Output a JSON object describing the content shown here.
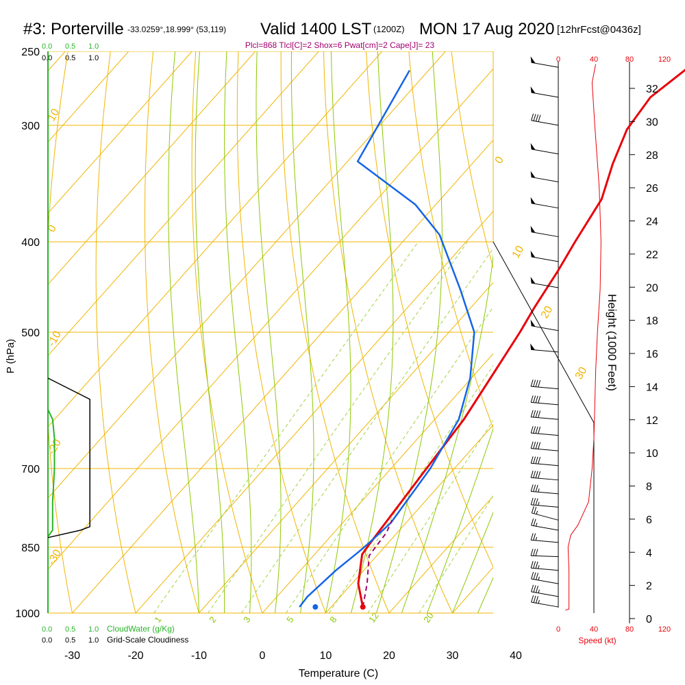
{
  "header": {
    "station": "#3: Porterville",
    "location": "-33.0259°,18.999° (53,119)",
    "valid": "Valid 1400 LST",
    "utc": "(1200Z)",
    "date": "MON 17 Aug 2020",
    "forecast": "[12hrFcst@0436z]",
    "indices": "Plcl=868 Tlcl[C]=2 Shox=6 Pwat[cm]=2 Cape[J]= 23"
  },
  "colors": {
    "temperature": "#e8000a",
    "dewpoint": "#1464e6",
    "parcel": "#a0006e",
    "isotherm": "#f0b400",
    "dry_adiabat": "#f0b400",
    "moist_adiabat": "#8cc800",
    "mixing_ratio": "#a0d040",
    "cloud_water": "#28b428",
    "cloudiness": "#000000",
    "wind_speed": "#e8000a"
  },
  "cloud_scale": {
    "top_green": [
      "0.0",
      "0.5",
      "1.0"
    ],
    "top_black": [
      "0.0",
      "0.5",
      "1.0"
    ],
    "bottom_green": [
      "0.0",
      "0.5",
      "1.0"
    ],
    "bottom_green_label": "CloudWater (g/Kg)",
    "bottom_black": [
      "0.0",
      "0.5",
      "1.0"
    ],
    "bottom_black_label": "Grid-Scale Cloudiness"
  },
  "speed_axis": {
    "ticks": [
      "0",
      "40",
      "80",
      "120"
    ],
    "label": "Speed (kt)"
  },
  "chart_data": {
    "type": "line",
    "title": "#3: Porterville  Valid 1400 LST (1200Z) MON 17 Aug 2020",
    "xlabel": "Temperature (C)",
    "ylabel": "P (hPa)",
    "y2label": "Height (1000 Feet)",
    "xlim": [
      -35,
      36
    ],
    "ylim": [
      1000,
      250
    ],
    "yscale": "log",
    "x_ticks": [
      -30,
      -20,
      -10,
      0,
      10,
      20,
      30,
      40
    ],
    "y_ticks": [
      250,
      300,
      400,
      500,
      700,
      850,
      1000
    ],
    "height_ticks": [
      0,
      2,
      4,
      6,
      8,
      10,
      12,
      14,
      16,
      18,
      20,
      22,
      24,
      26,
      28,
      30,
      32
    ],
    "dry_adiabat_labels": [
      "-10",
      "0",
      "10",
      "20",
      "30",
      "0",
      "10",
      "20",
      "30"
    ],
    "mixing_ratio_labels": [
      "1",
      "2",
      "3",
      "5",
      "8",
      "12",
      "20"
    ],
    "series": [
      {
        "name": "Temperature",
        "values": [
          [
            15.0,
            985
          ],
          [
            11.0,
            930
          ],
          [
            7.5,
            865
          ],
          [
            7.2,
            842
          ],
          [
            5.6,
            700
          ],
          [
            4.6,
            620
          ],
          [
            3.0,
            560
          ],
          [
            1.2,
            500
          ],
          [
            0.0,
            470
          ],
          [
            -1.4,
            430
          ],
          [
            -2.8,
            400
          ],
          [
            -4.6,
            360
          ],
          [
            -7.8,
            330
          ],
          [
            -10.4,
            303
          ],
          [
            -11.2,
            280
          ],
          [
            -9.4,
            260
          ]
        ]
      },
      {
        "name": "Dewpoint",
        "values": [
          [
            5.0,
            985
          ],
          [
            4.8,
            960
          ],
          [
            5.6,
            900
          ],
          [
            6.6,
            860
          ],
          [
            7.0,
            840
          ],
          [
            7.6,
            800
          ],
          [
            6.2,
            700
          ],
          [
            3.8,
            620
          ],
          [
            -0.2,
            560
          ],
          [
            -6.0,
            500
          ],
          [
            -14.2,
            450
          ],
          [
            -25.2,
            393
          ],
          [
            -33.2,
            365
          ],
          [
            -48.4,
            328
          ],
          [
            -53.0,
            262
          ]
        ]
      },
      {
        "name": "Parcel",
        "values": [
          [
            15.0,
            985
          ],
          [
            12.4,
            930
          ],
          [
            9.8,
            885
          ],
          [
            8.8,
            868
          ],
          [
            8.6,
            850
          ],
          [
            8.3,
            820
          ],
          [
            7.4,
            795
          ]
        ]
      }
    ],
    "surface_dewpoint": [
      7.5,
      985
    ],
    "cloud_water": [
      [
        0.0,
        1000
      ],
      [
        0.0,
        828
      ],
      [
        0.05,
        815
      ],
      [
        0.05,
        760
      ],
      [
        0.07,
        700
      ],
      [
        0.07,
        650
      ],
      [
        0.05,
        620
      ],
      [
        0.0,
        605
      ]
    ],
    "cloudiness": [
      [
        0.0,
        830
      ],
      [
        0.35,
        815
      ],
      [
        0.45,
        808
      ],
      [
        0.45,
        770
      ],
      [
        0.45,
        590
      ],
      [
        0.0,
        560
      ]
    ],
    "wind_speed_kt": [
      [
        8,
        993
      ],
      [
        12,
        990
      ],
      [
        12,
        960
      ],
      [
        12,
        900
      ],
      [
        11,
        850
      ],
      [
        14,
        825
      ],
      [
        22,
        805
      ],
      [
        34,
        760
      ],
      [
        38,
        700
      ],
      [
        40,
        650
      ],
      [
        41,
        600
      ],
      [
        42,
        550
      ],
      [
        44,
        500
      ],
      [
        47,
        450
      ],
      [
        48,
        400
      ],
      [
        46,
        350
      ],
      [
        41,
        300
      ],
      [
        38,
        270
      ],
      [
        42,
        258
      ]
    ],
    "wind_profile": [
      {
        "p": 985,
        "dir": 100,
        "spd": 35
      },
      {
        "p": 960,
        "dir": 100,
        "spd": 35
      },
      {
        "p": 930,
        "dir": 100,
        "spd": 35
      },
      {
        "p": 900,
        "dir": 95,
        "spd": 35
      },
      {
        "p": 870,
        "dir": 92,
        "spd": 30
      },
      {
        "p": 840,
        "dir": 95,
        "spd": 25
      },
      {
        "p": 815,
        "dir": 100,
        "spd": 25
      },
      {
        "p": 795,
        "dir": 105,
        "spd": 25
      },
      {
        "p": 770,
        "dir": 95,
        "spd": 35
      },
      {
        "p": 745,
        "dir": 95,
        "spd": 35
      },
      {
        "p": 720,
        "dir": 95,
        "spd": 40
      },
      {
        "p": 695,
        "dir": 95,
        "spd": 40
      },
      {
        "p": 670,
        "dir": 95,
        "spd": 40
      },
      {
        "p": 645,
        "dir": 95,
        "spd": 40
      },
      {
        "p": 620,
        "dir": 95,
        "spd": 40
      },
      {
        "p": 598,
        "dir": 95,
        "spd": 40
      },
      {
        "p": 575,
        "dir": 95,
        "spd": 40
      },
      {
        "p": 525,
        "dir": 95,
        "spd": 50
      },
      {
        "p": 498,
        "dir": 100,
        "spd": 50
      },
      {
        "p": 448,
        "dir": 100,
        "spd": 50
      },
      {
        "p": 420,
        "dir": 100,
        "spd": 50
      },
      {
        "p": 395,
        "dir": 100,
        "spd": 50
      },
      {
        "p": 368,
        "dir": 100,
        "spd": 50
      },
      {
        "p": 345,
        "dir": 100,
        "spd": 50
      },
      {
        "p": 322,
        "dir": 100,
        "spd": 50
      },
      {
        "p": 300,
        "dir": 100,
        "spd": 40
      },
      {
        "p": 280,
        "dir": 100,
        "spd": 50
      },
      {
        "p": 260,
        "dir": 100,
        "spd": 50
      }
    ]
  }
}
